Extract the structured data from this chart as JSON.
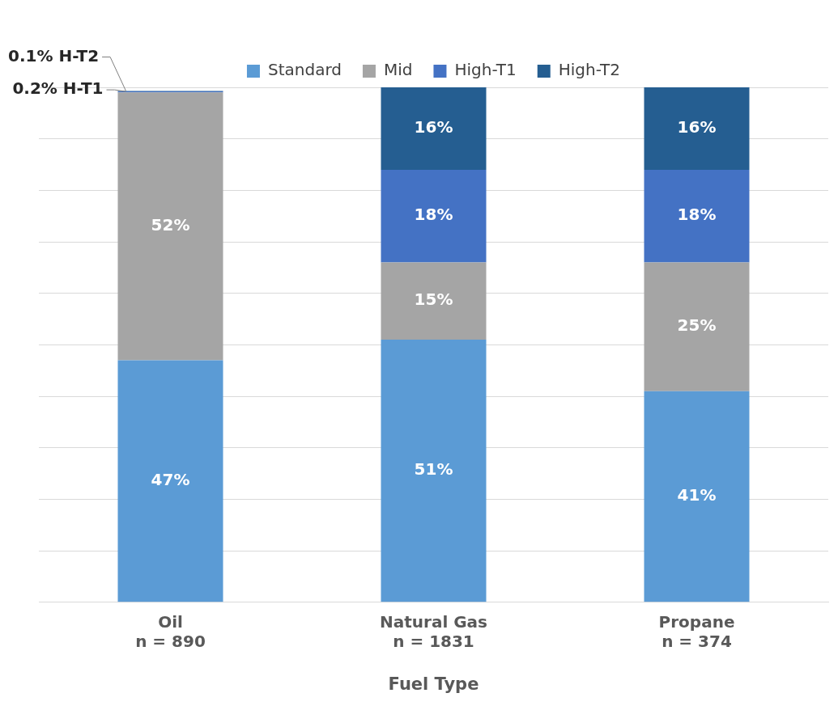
{
  "chart_data": {
    "type": "bar",
    "stacked": true,
    "xlabel": "Fuel Type",
    "categories": [
      "Oil\nn = 890",
      "Natural Gas\nn = 1831",
      "Propane\nn = 374"
    ],
    "series": [
      {
        "name": "Standard",
        "color": "#5b9bd5",
        "values": [
          47,
          51,
          41
        ],
        "value_labels": [
          "47%",
          "51%",
          "41%"
        ]
      },
      {
        "name": "Mid",
        "color": "#a5a5a5",
        "values": [
          52,
          15,
          25
        ],
        "value_labels": [
          "52%",
          "15%",
          "25%"
        ]
      },
      {
        "name": "High-T1",
        "color": "#4472c4",
        "values": [
          0.2,
          18,
          18
        ],
        "value_labels": [
          "0.2% H-T1",
          "18%",
          "18%"
        ]
      },
      {
        "name": "High-T2",
        "color": "#255e91",
        "values": [
          0.1,
          16,
          16
        ],
        "value_labels": [
          "0.1% H-T2",
          "16%",
          "16%"
        ]
      }
    ],
    "ylim": [
      0,
      100
    ],
    "yticks": [
      {
        "value": 0,
        "label": null
      },
      {
        "value": 10,
        "label": null
      },
      {
        "value": 20,
        "label": null
      },
      {
        "value": 30,
        "label": null
      },
      {
        "value": 40,
        "label": null
      },
      {
        "value": 50,
        "label": null
      },
      {
        "value": 60,
        "label": null
      },
      {
        "value": 70,
        "label": null
      },
      {
        "value": 80,
        "label": null
      },
      {
        "value": 90,
        "label": null
      },
      {
        "value": 100,
        "label": null
      }
    ],
    "tick_labels": "x",
    "grid": "y",
    "legend": "top"
  }
}
